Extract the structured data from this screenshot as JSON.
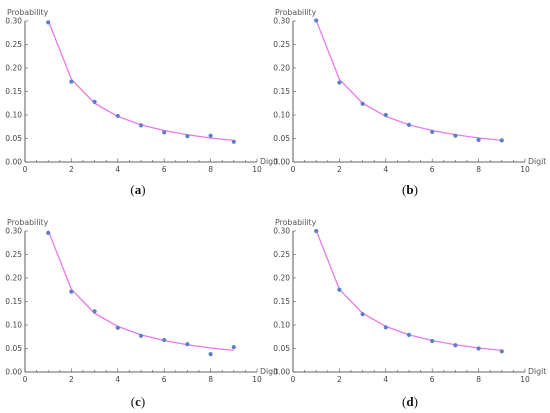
{
  "chart_data": [
    {
      "type": "scatter",
      "caption": "(a)",
      "caption_letter": "a",
      "xlabel": "Digit",
      "ylabel": "Probability",
      "xlim": [
        0,
        10
      ],
      "ylim": [
        0,
        0.3
      ],
      "xticks": [
        0,
        2,
        4,
        6,
        8,
        10
      ],
      "yticks": [
        0.0,
        0.05,
        0.1,
        0.15,
        0.2,
        0.25,
        0.3
      ],
      "ytick_labels": [
        "0.00",
        "0.05",
        "0.10",
        "0.15",
        "0.20",
        "0.25",
        "0.30"
      ],
      "x": [
        1,
        2,
        3,
        4,
        5,
        6,
        7,
        8,
        9
      ],
      "observed": [
        0.297,
        0.171,
        0.128,
        0.098,
        0.078,
        0.063,
        0.055,
        0.056,
        0.043
      ],
      "fitted": [
        0.301,
        0.176,
        0.125,
        0.097,
        0.079,
        0.067,
        0.058,
        0.051,
        0.046
      ],
      "grid": false
    },
    {
      "type": "scatter",
      "caption": "(b)",
      "caption_letter": "b",
      "xlabel": "Digit",
      "ylabel": "Probability",
      "xlim": [
        0,
        10
      ],
      "ylim": [
        0,
        0.3
      ],
      "xticks": [
        0,
        2,
        4,
        6,
        8,
        10
      ],
      "yticks": [
        0.0,
        0.05,
        0.1,
        0.15,
        0.2,
        0.25,
        0.3
      ],
      "ytick_labels": [
        "0.00",
        "0.05",
        "0.10",
        "0.15",
        "0.20",
        "0.25",
        "0.30"
      ],
      "x": [
        1,
        2,
        3,
        4,
        5,
        6,
        7,
        8,
        9
      ],
      "observed": [
        0.301,
        0.169,
        0.124,
        0.1,
        0.079,
        0.064,
        0.056,
        0.047,
        0.046
      ],
      "fitted": [
        0.301,
        0.176,
        0.125,
        0.097,
        0.079,
        0.067,
        0.058,
        0.051,
        0.046
      ],
      "grid": false
    },
    {
      "type": "scatter",
      "caption": "(c)",
      "caption_letter": "c",
      "xlabel": "Digit",
      "ylabel": "Probability",
      "xlim": [
        0,
        10
      ],
      "ylim": [
        0,
        0.3
      ],
      "xticks": [
        0,
        2,
        4,
        6,
        8,
        10
      ],
      "yticks": [
        0.0,
        0.05,
        0.1,
        0.15,
        0.2,
        0.25,
        0.3
      ],
      "ytick_labels": [
        "0.00",
        "0.05",
        "0.10",
        "0.15",
        "0.20",
        "0.25",
        "0.30"
      ],
      "x": [
        1,
        2,
        3,
        4,
        5,
        6,
        7,
        8,
        9
      ],
      "observed": [
        0.296,
        0.171,
        0.129,
        0.094,
        0.077,
        0.068,
        0.059,
        0.038,
        0.053
      ],
      "fitted": [
        0.301,
        0.176,
        0.125,
        0.097,
        0.079,
        0.067,
        0.058,
        0.051,
        0.046
      ],
      "grid": false
    },
    {
      "type": "scatter",
      "caption": "(d)",
      "caption_letter": "d",
      "xlabel": "Digit",
      "ylabel": "Probability",
      "xlim": [
        0,
        10
      ],
      "ylim": [
        0,
        0.3
      ],
      "xticks": [
        0,
        2,
        4,
        6,
        8,
        10
      ],
      "yticks": [
        0.0,
        0.05,
        0.1,
        0.15,
        0.2,
        0.25,
        0.3
      ],
      "ytick_labels": [
        "0.00",
        "0.05",
        "0.10",
        "0.15",
        "0.20",
        "0.25",
        "0.30"
      ],
      "x": [
        1,
        2,
        3,
        4,
        5,
        6,
        7,
        8,
        9
      ],
      "observed": [
        0.3,
        0.175,
        0.123,
        0.095,
        0.079,
        0.066,
        0.057,
        0.05,
        0.044
      ],
      "fitted": [
        0.301,
        0.176,
        0.125,
        0.097,
        0.079,
        0.067,
        0.058,
        0.051,
        0.046
      ],
      "grid": false
    }
  ],
  "colors": {
    "observed_points": "#5b80c8",
    "fitted_curve": "#ea78ea"
  }
}
